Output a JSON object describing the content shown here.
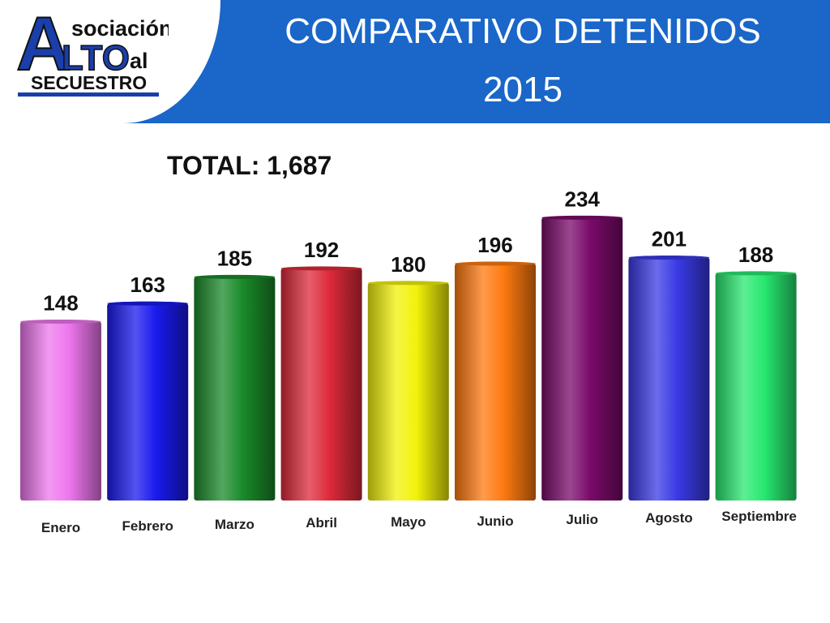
{
  "header": {
    "title_line1": "COMPARATIVO DETENIDOS",
    "title_line2": "2015",
    "band_color": "#1a66c9"
  },
  "logo": {
    "big_a": "A",
    "asociacion": "sociación",
    "alto": "LTO",
    "al": "al",
    "secuestro": "SECUESTRO",
    "colors": {
      "blue": "#1a3faa",
      "dark": "#111111"
    }
  },
  "total_label": "TOTAL: 1,687",
  "chart_data": {
    "type": "bar",
    "title": "",
    "categories": [
      "Enero",
      "Febrero",
      "Marzo",
      "Abril",
      "Mayo",
      "Junio",
      "Julio",
      "Agosto",
      "Septiembre"
    ],
    "values": [
      148,
      163,
      185,
      192,
      180,
      196,
      234,
      201,
      188
    ],
    "colors": [
      "#ee77ee",
      "#1a1aee",
      "#1a8a2a",
      "#dd2a3a",
      "#f2f20a",
      "#ff7a10",
      "#7a0a6a",
      "#3a3ae6",
      "#28e870"
    ],
    "bar_style": "cylinder",
    "data_labels": true,
    "xlabel": "",
    "ylabel": ""
  }
}
